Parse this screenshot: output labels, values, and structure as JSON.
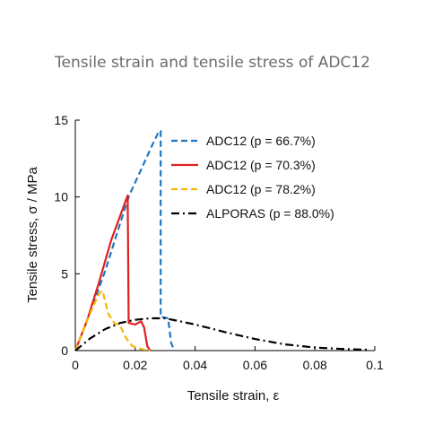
{
  "chart_data": {
    "type": "line",
    "title": "Tensile strain and tensile stress of ADC12",
    "xlabel": "Tensile strain, ε",
    "ylabel": "Tensile stress, σ / MPa",
    "xlim": [
      0,
      0.1
    ],
    "ylim": [
      0,
      15
    ],
    "x_ticks": [
      "0",
      "0.02",
      "0.04",
      "0.06",
      "0.08",
      "0.1"
    ],
    "y_ticks": [
      "0",
      "5",
      "10",
      "15"
    ],
    "grid": false,
    "legend_position": "top-right",
    "series": [
      {
        "name": "ADC12 (p = 66.7%)",
        "color": "#1f77c4",
        "style": "dashed",
        "points": [
          [
            0,
            0
          ],
          [
            0.005,
            2.5
          ],
          [
            0.01,
            5.2
          ],
          [
            0.015,
            8.3
          ],
          [
            0.018,
            10.1
          ],
          [
            0.022,
            11.8
          ],
          [
            0.026,
            13.5
          ],
          [
            0.028,
            14.3
          ],
          [
            0.0285,
            14.3
          ],
          [
            0.0285,
            2.2
          ],
          [
            0.031,
            2.1
          ],
          [
            0.032,
            0.5
          ],
          [
            0.033,
            0
          ]
        ]
      },
      {
        "name": "ADC12 (p = 70.3%)",
        "color": "#e02020",
        "style": "solid",
        "points": [
          [
            0,
            0
          ],
          [
            0.004,
            2.0
          ],
          [
            0.008,
            4.5
          ],
          [
            0.012,
            7.2
          ],
          [
            0.0175,
            10.1
          ],
          [
            0.0178,
            1.8
          ],
          [
            0.02,
            1.7
          ],
          [
            0.022,
            1.9
          ],
          [
            0.023,
            1.5
          ],
          [
            0.024,
            0.3
          ],
          [
            0.025,
            0
          ]
        ]
      },
      {
        "name": "ADC12 (p = 78.2%)",
        "color": "#f5b800",
        "style": "dashed",
        "points": [
          [
            0,
            0
          ],
          [
            0.003,
            1.5
          ],
          [
            0.006,
            2.9
          ],
          [
            0.008,
            3.7
          ],
          [
            0.009,
            3.9
          ],
          [
            0.01,
            3.2
          ],
          [
            0.011,
            2.4
          ],
          [
            0.013,
            1.8
          ],
          [
            0.015,
            1.6
          ],
          [
            0.017,
            0.8
          ],
          [
            0.019,
            0.3
          ],
          [
            0.022,
            0.1
          ],
          [
            0.025,
            0
          ]
        ]
      },
      {
        "name": "ALPORAS (p = 88.0%)",
        "color": "#000000",
        "style": "dashdot",
        "points": [
          [
            0,
            0
          ],
          [
            0.005,
            0.8
          ],
          [
            0.01,
            1.4
          ],
          [
            0.015,
            1.8
          ],
          [
            0.02,
            2.0
          ],
          [
            0.025,
            2.1
          ],
          [
            0.03,
            2.1
          ],
          [
            0.035,
            1.9
          ],
          [
            0.04,
            1.7
          ],
          [
            0.05,
            1.2
          ],
          [
            0.06,
            0.75
          ],
          [
            0.07,
            0.4
          ],
          [
            0.08,
            0.2
          ],
          [
            0.09,
            0.1
          ],
          [
            0.098,
            0.05
          ]
        ]
      }
    ]
  }
}
